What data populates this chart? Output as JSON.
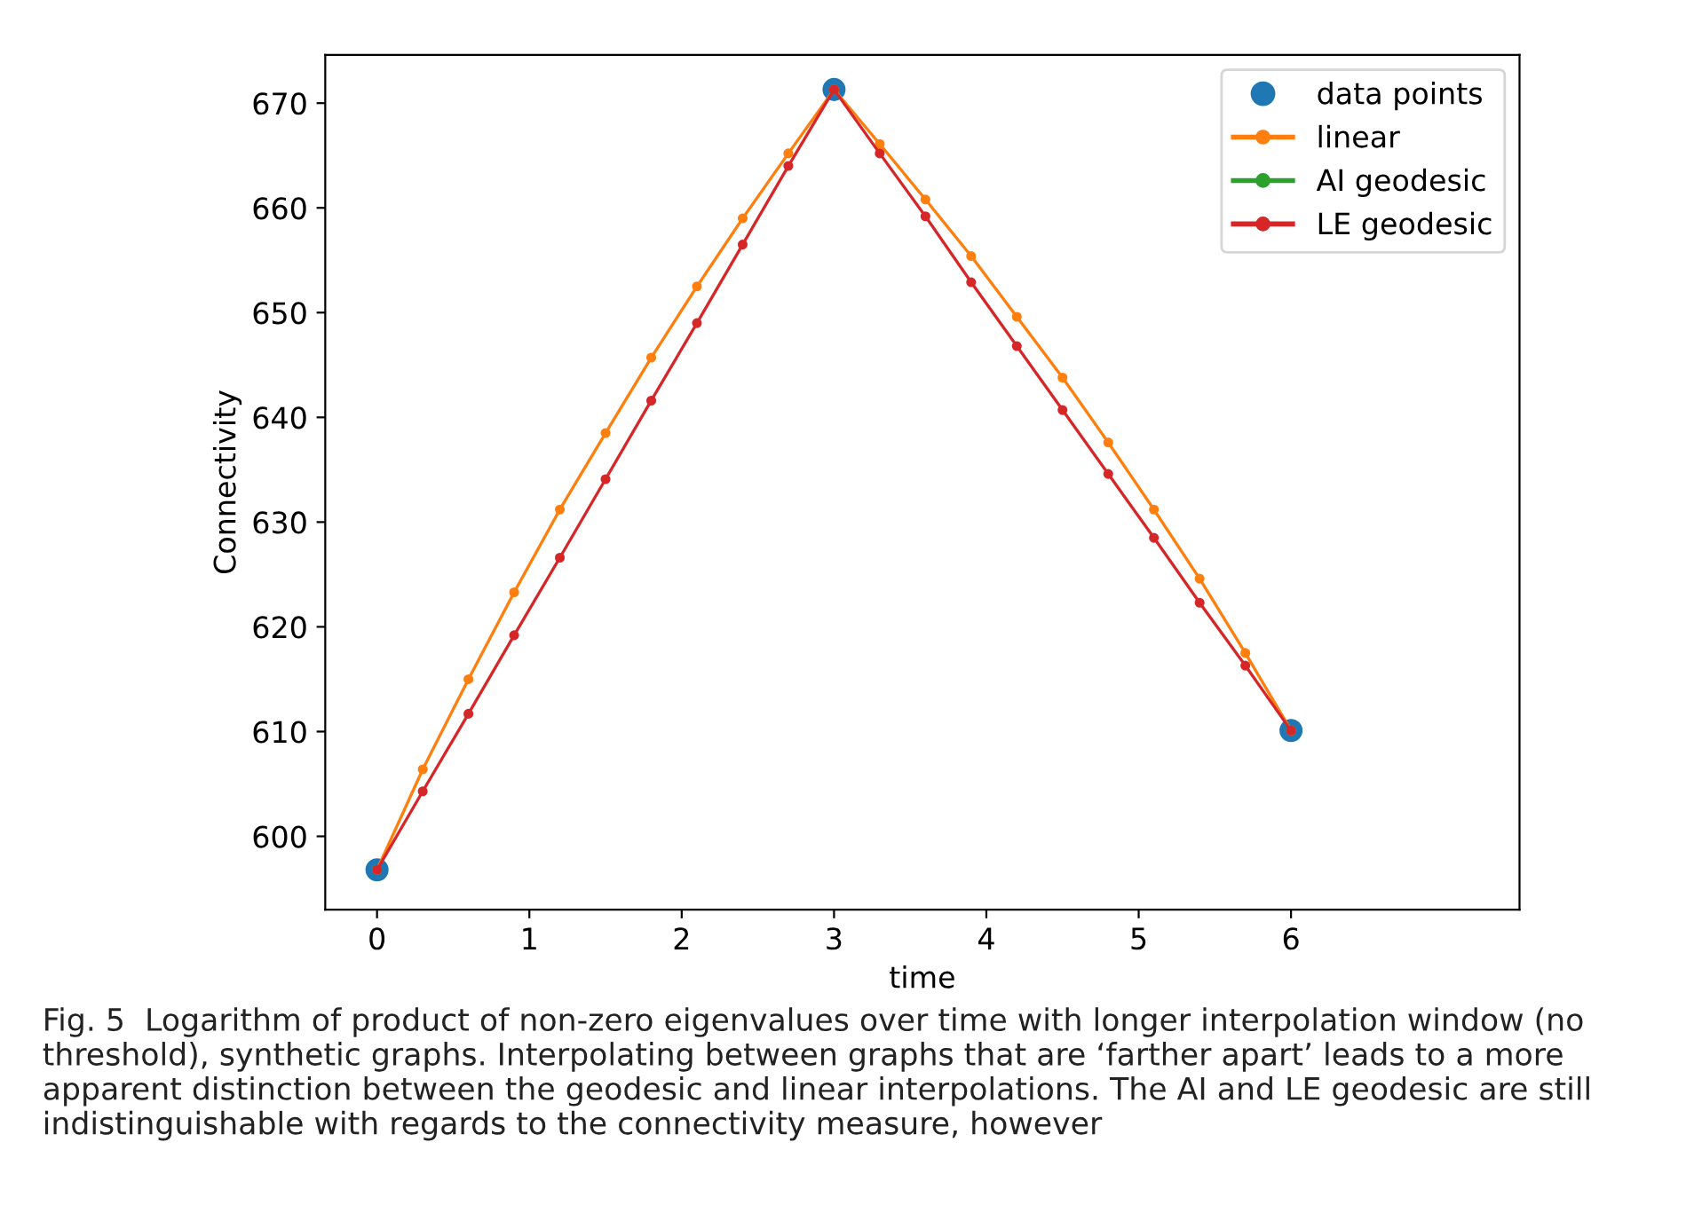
{
  "chart_data": {
    "type": "line",
    "xlabel": "time",
    "ylabel": "Connectivity",
    "xlim": [
      -0.34,
      7.5
    ],
    "xticks": [
      0,
      1,
      2,
      3,
      4,
      5,
      6
    ],
    "ylim": [
      593,
      674.6
    ],
    "yticks": [
      600,
      610,
      620,
      630,
      640,
      650,
      660,
      670
    ],
    "grid": false,
    "legend": "top right",
    "annotations": [
      "Fig. 5  Logarithm of product of non-zero eigenvalues over time with longer interpolation window (no threshold), synthetic graphs. Interpolating between graphs that are ‘farther apart’ leads to a more apparent distinction between the geodesic and linear interpolations. The AI and LE geodesic are still indistinguishable with regards to the connectivity measure, however"
    ],
    "series": [
      {
        "name": "data points",
        "type": "scatter",
        "marker": "circle",
        "color": "#1f77b4",
        "x": [
          0,
          3,
          6
        ],
        "values": [
          596.8,
          671.3,
          610.1
        ]
      },
      {
        "name": "linear",
        "marker": "circle",
        "color": "#ff7f0e",
        "x": [
          0,
          0.3,
          0.6,
          0.9,
          1.2,
          1.5,
          1.8,
          2.1,
          2.4,
          2.7,
          3,
          3.3,
          3.6,
          3.9,
          4.2,
          4.5,
          4.8,
          5.1,
          5.4,
          5.7,
          6
        ],
        "values": [
          596.8,
          606.4,
          615.0,
          623.3,
          631.2,
          638.5,
          645.7,
          652.5,
          659.0,
          665.2,
          671.3,
          666.1,
          660.8,
          655.4,
          649.6,
          643.8,
          637.6,
          631.2,
          624.6,
          617.5,
          610.1
        ]
      },
      {
        "name": "AI geodesic",
        "marker": "circle",
        "color": "#2ca02c",
        "values": [
          null,
          null,
          null,
          null,
          null,
          null,
          null,
          null,
          null,
          null,
          null,
          null,
          null,
          null,
          null,
          null,
          null,
          null,
          null,
          null,
          null
        ]
      },
      {
        "name": "LE geodesic",
        "marker": "circle",
        "color": "#d62728",
        "x": [
          0,
          0.3,
          0.6,
          0.9,
          1.2,
          1.5,
          1.8,
          2.1,
          2.4,
          2.7,
          3,
          3.3,
          3.6,
          3.9,
          4.2,
          4.5,
          4.8,
          5.1,
          5.4,
          5.7,
          6
        ],
        "values": [
          596.8,
          604.3,
          611.7,
          619.2,
          626.6,
          634.1,
          641.6,
          649.0,
          656.5,
          664.0,
          671.3,
          665.2,
          659.2,
          652.9,
          646.8,
          640.7,
          634.6,
          628.5,
          622.3,
          616.3,
          610.1
        ]
      }
    ]
  }
}
